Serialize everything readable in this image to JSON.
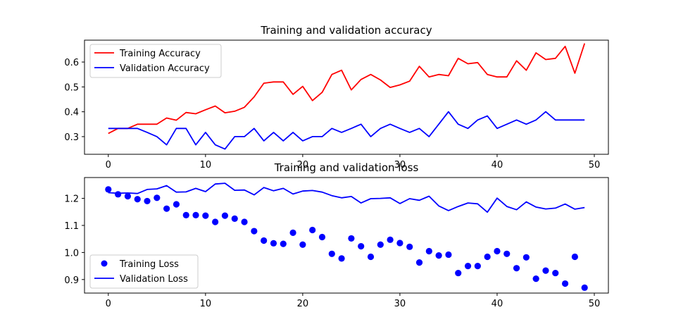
{
  "chart_data": [
    {
      "type": "line",
      "title": "Training and validation accuracy",
      "xlabel": "",
      "ylabel": "",
      "xlim": [
        -2.45,
        51.45
      ],
      "ylim": [
        0.229,
        0.688
      ],
      "xticks": [
        0,
        10,
        20,
        30,
        40,
        50
      ],
      "yticks": [
        0.3,
        0.4,
        0.5,
        0.6
      ],
      "ytick_decimals": 1,
      "grid": false,
      "legend": "upper-left",
      "series": [
        {
          "name": "Training Accuracy",
          "color": "#ff0000",
          "style": "line",
          "x": [
            0,
            1,
            2,
            3,
            4,
            5,
            6,
            7,
            8,
            9,
            10,
            11,
            12,
            13,
            14,
            15,
            16,
            17,
            18,
            19,
            20,
            21,
            22,
            23,
            24,
            25,
            26,
            27,
            28,
            29,
            30,
            31,
            32,
            33,
            34,
            35,
            36,
            37,
            38,
            39,
            40,
            41,
            42,
            43,
            44,
            45,
            46,
            47,
            48,
            49
          ],
          "values": [
            0.313,
            0.333,
            0.333,
            0.35,
            0.35,
            0.35,
            0.375,
            0.366,
            0.397,
            0.392,
            0.408,
            0.423,
            0.396,
            0.402,
            0.418,
            0.46,
            0.515,
            0.52,
            0.52,
            0.47,
            0.502,
            0.445,
            0.478,
            0.55,
            0.567,
            0.488,
            0.53,
            0.55,
            0.528,
            0.498,
            0.508,
            0.523,
            0.583,
            0.54,
            0.55,
            0.545,
            0.615,
            0.593,
            0.598,
            0.55,
            0.54,
            0.54,
            0.605,
            0.567,
            0.637,
            0.61,
            0.615,
            0.663,
            0.555,
            0.675
          ]
        },
        {
          "name": "Validation Accuracy",
          "color": "#0000ff",
          "style": "line",
          "x": [
            0,
            1,
            2,
            3,
            4,
            5,
            6,
            7,
            8,
            9,
            10,
            11,
            12,
            13,
            14,
            15,
            16,
            17,
            18,
            19,
            20,
            21,
            22,
            23,
            24,
            25,
            26,
            27,
            28,
            29,
            30,
            31,
            32,
            33,
            34,
            35,
            36,
            37,
            38,
            39,
            40,
            41,
            42,
            43,
            44,
            45,
            46,
            47,
            48,
            49
          ],
          "values": [
            0.333,
            0.333,
            0.333,
            0.333,
            0.317,
            0.3,
            0.267,
            0.333,
            0.333,
            0.267,
            0.317,
            0.267,
            0.25,
            0.3,
            0.3,
            0.333,
            0.283,
            0.317,
            0.283,
            0.317,
            0.283,
            0.3,
            0.3,
            0.333,
            0.317,
            0.333,
            0.35,
            0.3,
            0.333,
            0.35,
            0.333,
            0.317,
            0.333,
            0.3,
            0.35,
            0.4,
            0.35,
            0.333,
            0.367,
            0.383,
            0.333,
            0.35,
            0.367,
            0.35,
            0.367,
            0.4,
            0.367,
            0.367,
            0.367,
            0.367
          ]
        }
      ]
    },
    {
      "type": "line",
      "title": "Training and validation loss",
      "xlabel": "",
      "ylabel": "",
      "xlim": [
        -2.45,
        51.45
      ],
      "ylim": [
        0.85,
        1.277
      ],
      "xticks": [
        0,
        10,
        20,
        30,
        40,
        50
      ],
      "yticks": [
        0.9,
        1.0,
        1.1,
        1.2
      ],
      "ytick_decimals": 1,
      "grid": false,
      "legend": "lower-left",
      "series": [
        {
          "name": "Training Loss",
          "color": "#0000ff",
          "style": "markers",
          "x": [
            0,
            1,
            2,
            3,
            4,
            5,
            6,
            7,
            8,
            9,
            10,
            11,
            12,
            13,
            14,
            15,
            16,
            17,
            18,
            19,
            20,
            21,
            22,
            23,
            24,
            25,
            26,
            27,
            28,
            29,
            30,
            31,
            32,
            33,
            34,
            35,
            36,
            37,
            38,
            39,
            40,
            41,
            42,
            43,
            44,
            45,
            46,
            47,
            48,
            49
          ],
          "values": [
            1.233,
            1.215,
            1.208,
            1.197,
            1.19,
            1.202,
            1.162,
            1.178,
            1.138,
            1.138,
            1.136,
            1.113,
            1.136,
            1.125,
            1.113,
            1.079,
            1.044,
            1.034,
            1.032,
            1.073,
            1.029,
            1.083,
            1.057,
            0.995,
            0.978,
            1.052,
            1.023,
            0.984,
            1.029,
            1.047,
            1.035,
            1.021,
            0.963,
            1.005,
            0.989,
            0.992,
            0.924,
            0.95,
            0.95,
            0.984,
            1.005,
            0.995,
            0.942,
            0.982,
            0.903,
            0.933,
            0.924,
            0.885,
            0.984,
            0.87
          ]
        },
        {
          "name": "Validation Loss",
          "color": "#0000ff",
          "style": "line",
          "x": [
            0,
            1,
            2,
            3,
            4,
            5,
            6,
            7,
            8,
            9,
            10,
            11,
            12,
            13,
            14,
            15,
            16,
            17,
            18,
            19,
            20,
            21,
            22,
            23,
            24,
            25,
            26,
            27,
            28,
            29,
            30,
            31,
            32,
            33,
            34,
            35,
            36,
            37,
            38,
            39,
            40,
            41,
            42,
            43,
            44,
            45,
            46,
            47,
            48,
            49
          ],
          "values": [
            1.221,
            1.219,
            1.22,
            1.218,
            1.233,
            1.235,
            1.247,
            1.223,
            1.224,
            1.237,
            1.225,
            1.253,
            1.256,
            1.23,
            1.231,
            1.213,
            1.24,
            1.228,
            1.237,
            1.216,
            1.227,
            1.229,
            1.223,
            1.21,
            1.202,
            1.207,
            1.183,
            1.199,
            1.2,
            1.202,
            1.181,
            1.199,
            1.193,
            1.208,
            1.172,
            1.155,
            1.17,
            1.183,
            1.18,
            1.149,
            1.201,
            1.17,
            1.158,
            1.187,
            1.168,
            1.161,
            1.164,
            1.179,
            1.16,
            1.166
          ]
        }
      ]
    }
  ]
}
